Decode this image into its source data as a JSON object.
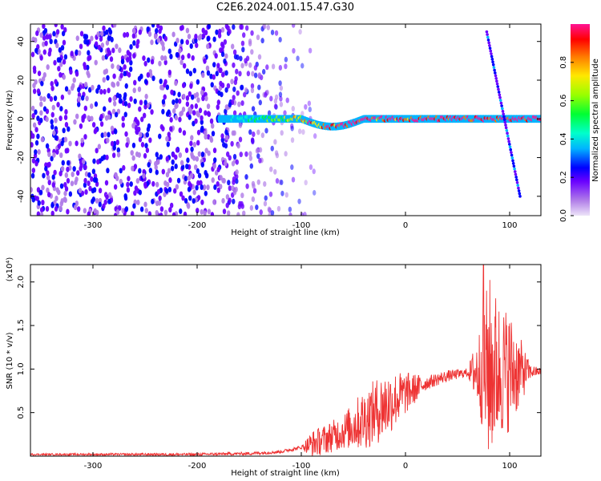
{
  "figure_title": "C2E6.2024.001.15.47.G30",
  "chart_data": [
    {
      "type": "heatmap",
      "title": "",
      "xlabel": "Height of straight line (km)",
      "ylabel": "Frequency (Hz)",
      "xlim": [
        -360,
        130
      ],
      "ylim": [
        -50,
        49
      ],
      "xticks": [
        -300,
        -200,
        -100,
        0,
        100
      ],
      "xtick_labels": [
        "-300",
        "-200",
        "-100",
        "0",
        "100"
      ],
      "yticks": [
        -40,
        -20,
        0,
        20,
        40
      ],
      "ytick_labels": [
        "-40",
        "-20",
        "0",
        "20",
        "40"
      ],
      "colorbar": {
        "label": "Normalized spectral amplitude",
        "range": [
          0,
          1
        ],
        "ticks": [
          0.0,
          0.2,
          0.4,
          0.6,
          0.8
        ],
        "tick_labels": [
          "0.0",
          "0.2",
          "0.4",
          "0.6",
          "0.8"
        ],
        "colormap": [
          "#e6d8f7",
          "#8a2be2",
          "#6a00ff",
          "#0000ff",
          "#00e5ff",
          "#00ff66",
          "#7cff00",
          "#ffe800",
          "#ff8c00",
          "#ff0000",
          "#ff1493"
        ]
      },
      "features": {
        "noise_region_x": [
          -360,
          -120
        ],
        "noise_amplitude": 0.25,
        "signal_band_x": [
          -180,
          130
        ],
        "signal_band_freq": 0,
        "signal_band_peak_amplitude": 0.95,
        "drift_streak": {
          "x": [
            78,
            110
          ],
          "freq": [
            45,
            -40
          ]
        }
      },
      "grid": false
    },
    {
      "type": "line",
      "title": "",
      "xlabel": "Height of straight line (km)",
      "ylabel": "SNR (10 * v/v)",
      "yscale_label": "(x10⁴)",
      "xlim": [
        -360,
        130
      ],
      "ylim": [
        0,
        2.2
      ],
      "xticks": [
        -300,
        -200,
        -100,
        0,
        100
      ],
      "xtick_labels": [
        "-300",
        "-200",
        "-100",
        "0",
        "100"
      ],
      "yticks": [
        0.5,
        1.0,
        1.5,
        2.0
      ],
      "ytick_labels": [
        "0.5",
        "1.0",
        "1.5",
        "2.0"
      ],
      "series": [
        {
          "color": "#ee3333",
          "envelope_x": [
            -360,
            -200,
            -150,
            -120,
            -100,
            -80,
            -60,
            -40,
            -20,
            0,
            20,
            40,
            60,
            72,
            80,
            90,
            100,
            110,
            120,
            130
          ],
          "envelope_y": [
            0.02,
            0.02,
            0.03,
            0.05,
            0.1,
            0.18,
            0.28,
            0.42,
            0.58,
            0.72,
            0.84,
            0.92,
            0.96,
            0.98,
            1.0,
            1.0,
            0.98,
            0.97,
            0.97,
            0.97
          ],
          "noise_x": [
            -360,
            -100,
            -90,
            -60,
            -40,
            -20,
            0,
            20,
            60,
            72,
            80,
            90,
            100,
            110,
            120,
            130
          ],
          "noise_y": [
            0.01,
            0.02,
            0.15,
            0.2,
            0.35,
            0.4,
            0.25,
            0.08,
            0.05,
            0.55,
            1.1,
            0.8,
            0.7,
            0.4,
            0.08,
            0.04
          ],
          "peak": {
            "x": 75,
            "y": 2.2
          }
        }
      ],
      "grid": false
    }
  ]
}
